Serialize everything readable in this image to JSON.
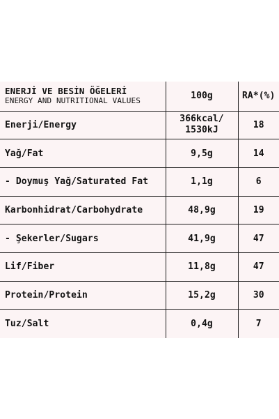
{
  "table": {
    "header": {
      "title": "ENERJİ VE BESİN ÖĞELERİ",
      "subtitle": "ENERGY AND NUTRITIONAL VALUES",
      "col_amount": "100g",
      "col_ra": "RA*(%)"
    },
    "rows": [
      {
        "name": "Enerji/Energy",
        "amount_line1": "366kcal/",
        "amount_line2": "1530kJ",
        "ra": "18"
      },
      {
        "name": "Yağ/Fat",
        "amount": "9,5g",
        "ra": "14"
      },
      {
        "name": "- Doymuş Yağ/Saturated Fat",
        "amount": "1,1g",
        "ra": "6"
      },
      {
        "name": "Karbonhidrat/Carbohydrate",
        "amount": "48,9g",
        "ra": "19"
      },
      {
        "name": "- Şekerler/Sugars",
        "amount": "41,9g",
        "ra": "47"
      },
      {
        "name": "Lif/Fiber",
        "amount": "11,8g",
        "ra": "47"
      },
      {
        "name": "Protein/Protein",
        "amount": "15,2g",
        "ra": "30"
      },
      {
        "name": "Tuz/Salt",
        "amount": "0,4g",
        "ra": "7"
      }
    ]
  },
  "colors": {
    "background": "#ffffff",
    "table_fill": "#fcf4f5",
    "border": "#1a1a1a",
    "text": "#111111"
  }
}
